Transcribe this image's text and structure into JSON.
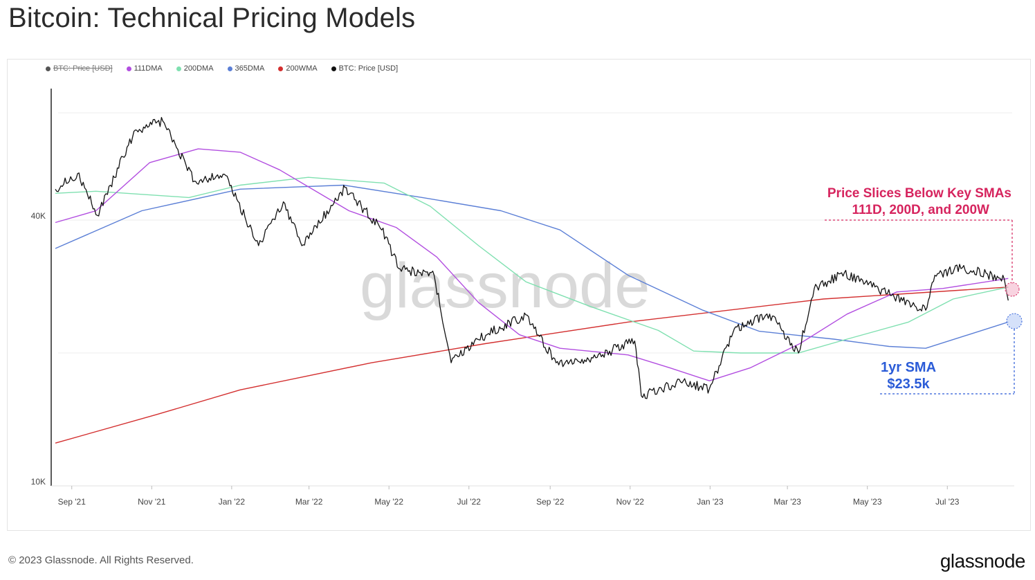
{
  "title": "Bitcoin: Technical Pricing Models",
  "legend": [
    {
      "label": "BTC: Price [USD]",
      "color": "#555555",
      "hidden": true
    },
    {
      "label": "111DMA",
      "color": "#b24ee0",
      "hidden": false
    },
    {
      "label": "200DMA",
      "color": "#7fe0b0",
      "hidden": false
    },
    {
      "label": "365DMA",
      "color": "#5b7fd6",
      "hidden": false
    },
    {
      "label": "200WMA",
      "color": "#d32f2f",
      "hidden": false
    },
    {
      "label": "BTC: Price [USD]",
      "color": "#111111",
      "hidden": false
    }
  ],
  "watermark": "glassnode",
  "annotations": {
    "red_line1": "Price Slices Below Key SMAs",
    "red_line2": "111D, 200D, and 200W",
    "blue_line1": "1yr SMA",
    "blue_line2": "$23.5k",
    "red_color": "#d6245e",
    "blue_color": "#2a5bd7"
  },
  "footer": {
    "copyright": "© 2023 Glassnode. All Rights Reserved.",
    "brand": "glassnode"
  },
  "chart_data": {
    "type": "line",
    "title": "Bitcoin: Technical Pricing Models",
    "y_scale": "log",
    "ylim": [
      10000,
      70000
    ],
    "y_tick_labels": [
      {
        "value": 40000,
        "label": "40K"
      },
      {
        "value": 10000,
        "label": "10K"
      }
    ],
    "x_tick_labels": [
      "Sep '21",
      "Nov '21",
      "Jan '22",
      "Mar '22",
      "May '22",
      "Jul '22",
      "Sep '22",
      "Nov '22",
      "Jan '23",
      "Mar '23",
      "May '23",
      "Jul '23"
    ],
    "xlim": [
      "2021-08-20",
      "2023-08-20"
    ],
    "grid": "horizontal",
    "legend_placement": "top-left",
    "series": [
      {
        "name": "BTC: Price [USD]",
        "color": "#111111",
        "points": [
          [
            "2021-08-20",
            47000
          ],
          [
            "2021-09-06",
            51000
          ],
          [
            "2021-09-21",
            41000
          ],
          [
            "2021-10-01",
            48000
          ],
          [
            "2021-10-20",
            64000
          ],
          [
            "2021-11-10",
            67000
          ],
          [
            "2021-12-04",
            49000
          ],
          [
            "2021-12-27",
            50800
          ],
          [
            "2022-01-22",
            35000
          ],
          [
            "2022-02-10",
            44000
          ],
          [
            "2022-02-24",
            35000
          ],
          [
            "2022-03-29",
            47400
          ],
          [
            "2022-04-26",
            38000
          ],
          [
            "2022-05-10",
            31000
          ],
          [
            "2022-06-05",
            30000
          ],
          [
            "2022-06-18",
            19000
          ],
          [
            "2022-07-08",
            21500
          ],
          [
            "2022-08-14",
            24400
          ],
          [
            "2022-09-06",
            19000
          ],
          [
            "2022-10-01",
            19300
          ],
          [
            "2022-11-05",
            21300
          ],
          [
            "2022-11-10",
            16000
          ],
          [
            "2022-12-10",
            17200
          ],
          [
            "2023-01-01",
            16600
          ],
          [
            "2023-01-20",
            22700
          ],
          [
            "2023-02-16",
            24500
          ],
          [
            "2023-03-10",
            20000
          ],
          [
            "2023-03-22",
            28000
          ],
          [
            "2023-04-14",
            30400
          ],
          [
            "2023-05-20",
            27000
          ],
          [
            "2023-06-15",
            25000
          ],
          [
            "2023-06-22",
            30000
          ],
          [
            "2023-07-13",
            31200
          ],
          [
            "2023-08-14",
            29400
          ],
          [
            "2023-08-17",
            26300
          ]
        ]
      },
      {
        "name": "111DMA",
        "color": "#b24ee0",
        "points": [
          [
            "2021-08-20",
            39500
          ],
          [
            "2021-09-20",
            42000
          ],
          [
            "2021-10-31",
            54000
          ],
          [
            "2021-12-07",
            58000
          ],
          [
            "2022-01-08",
            57000
          ],
          [
            "2022-02-07",
            52000
          ],
          [
            "2022-04-01",
            42000
          ],
          [
            "2022-05-07",
            38500
          ],
          [
            "2022-06-07",
            33000
          ],
          [
            "2022-07-09",
            26000
          ],
          [
            "2022-08-09",
            22000
          ],
          [
            "2022-09-09",
            20500
          ],
          [
            "2022-10-31",
            19800
          ],
          [
            "2022-12-02",
            18500
          ],
          [
            "2023-01-01",
            17300
          ],
          [
            "2023-02-01",
            18500
          ],
          [
            "2023-03-11",
            21000
          ],
          [
            "2023-04-16",
            24500
          ],
          [
            "2023-05-24",
            27500
          ],
          [
            "2023-06-28",
            28000
          ],
          [
            "2023-08-17",
            29500
          ]
        ]
      },
      {
        "name": "200DMA",
        "color": "#7fe0b0",
        "points": [
          [
            "2021-08-20",
            46000
          ],
          [
            "2021-09-20",
            46500
          ],
          [
            "2021-11-30",
            45000
          ],
          [
            "2022-01-08",
            48000
          ],
          [
            "2022-03-01",
            50000
          ],
          [
            "2022-04-28",
            48500
          ],
          [
            "2022-06-02",
            43000
          ],
          [
            "2022-07-09",
            35000
          ],
          [
            "2022-08-14",
            29000
          ],
          [
            "2022-10-02",
            25500
          ],
          [
            "2022-11-23",
            22500
          ],
          [
            "2022-12-20",
            20200
          ],
          [
            "2023-01-25",
            20000
          ],
          [
            "2023-03-10",
            20000
          ],
          [
            "2023-04-16",
            21500
          ],
          [
            "2023-06-02",
            23500
          ],
          [
            "2023-07-06",
            26500
          ],
          [
            "2023-08-17",
            28200
          ]
        ]
      },
      {
        "name": "365DMA",
        "color": "#5b7fd6",
        "points": [
          [
            "2021-08-20",
            34500
          ],
          [
            "2021-10-25",
            42000
          ],
          [
            "2022-01-08",
            47000
          ],
          [
            "2022-03-28",
            48000
          ],
          [
            "2022-05-27",
            45000
          ],
          [
            "2022-07-26",
            42000
          ],
          [
            "2022-09-09",
            38000
          ],
          [
            "2022-10-31",
            30000
          ],
          [
            "2022-12-27",
            25000
          ],
          [
            "2023-02-08",
            22400
          ],
          [
            "2023-04-06",
            21500
          ],
          [
            "2023-05-18",
            20700
          ],
          [
            "2023-06-15",
            20500
          ],
          [
            "2023-08-17",
            23500
          ]
        ]
      },
      {
        "name": "200WMA",
        "color": "#d32f2f",
        "points": [
          [
            "2021-08-20",
            12500
          ],
          [
            "2021-11-05",
            14500
          ],
          [
            "2022-01-08",
            16500
          ],
          [
            "2022-04-18",
            19000
          ],
          [
            "2022-07-14",
            21000
          ],
          [
            "2022-10-31",
            23500
          ],
          [
            "2023-03-29",
            26500
          ],
          [
            "2023-08-17",
            28200
          ]
        ]
      }
    ],
    "annotations": [
      {
        "text": "Price Slices Below Key SMAs",
        "text2": "111D, 200D, and 200W",
        "date": "2023-08-17",
        "value": 28200
      },
      {
        "text": "1yr SMA",
        "text2": "$23.5k",
        "date": "2023-08-17",
        "value": 23500
      }
    ]
  }
}
